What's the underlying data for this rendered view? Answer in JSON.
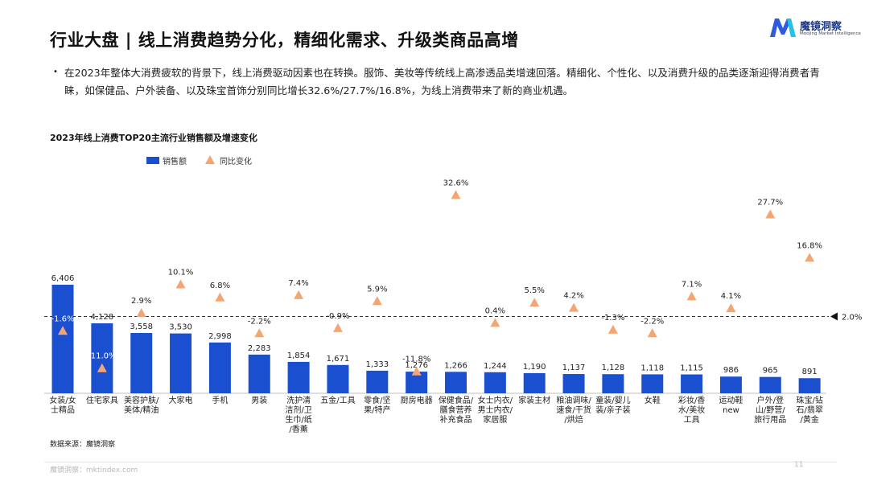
{
  "page": {
    "title": "行业大盘 | 线上消费趋势分化，精细化需求、升级类商品高增",
    "bullet": "在2023年整体大消费疲软的背景下，线上消费驱动因素也在转换。服饰、美妆等传统线上高渗透品类增速回落。精细化、个性化、以及消费升级的品类逐渐迎得消费者青睐，如保健品、户外装备、以及珠宝首饰分别同比增长32.6%/27.7%/16.8%，为线上消费带来了新的商业机遇。",
    "source": "数据来源：魔镜洞察",
    "footer_left": "魔镜洞察：mktindex.com",
    "page_number": "11"
  },
  "logo": {
    "name": "魔镜洞察",
    "sub": "Moojing Market Intelligence"
  },
  "colors": {
    "bar": "#1a4fcf",
    "triangle": "#f4a672",
    "line": "#333333"
  },
  "chart_data": {
    "type": "bar",
    "title": "2023年线上消费TOP20主流行业销售额及增速变化",
    "legend": {
      "bar": "销售额",
      "marker": "同比变化"
    },
    "categories": [
      [
        "女装/女",
        "士精品"
      ],
      [
        "住宅家具"
      ],
      [
        "美容护肤/",
        "美体/精油"
      ],
      [
        "大家电"
      ],
      [
        "手机"
      ],
      [
        "男装"
      ],
      [
        "洗护清",
        "洁剂/卫",
        "生巾/纸",
        "/香薰"
      ],
      [
        "五金/工具"
      ],
      [
        "零食/坚",
        "果/特产"
      ],
      [
        "厨房电器"
      ],
      [
        "保健食品/",
        "膳食营养",
        "补充食品"
      ],
      [
        "女士内衣/",
        "男士内衣/",
        "家居服"
      ],
      [
        "家装主材"
      ],
      [
        "粮油调味/",
        "速食/干货",
        "/烘焙"
      ],
      [
        "童装/婴儿",
        "装/亲子装"
      ],
      [
        "女鞋"
      ],
      [
        "彩妆/香",
        "水/美妆",
        "工具"
      ],
      [
        "运动鞋",
        "new"
      ],
      [
        "户外/登",
        "山/野营/",
        "旅行用品"
      ],
      [
        "珠宝/钻",
        "石/翡翠",
        "/黄金"
      ]
    ],
    "series": [
      {
        "name": "销售额",
        "values": [
          6406,
          4128,
          3558,
          3530,
          2998,
          2283,
          1854,
          1671,
          1333,
          1276,
          1266,
          1244,
          1190,
          1137,
          1128,
          1118,
          1115,
          986,
          965,
          891
        ]
      },
      {
        "name": "同比变化",
        "unit": "%",
        "values": [
          -1.6,
          -11.0,
          2.9,
          10.1,
          6.8,
          -2.2,
          7.4,
          -0.9,
          5.9,
          -11.8,
          32.6,
          0.4,
          5.5,
          4.2,
          -1.3,
          -2.2,
          7.1,
          4.1,
          27.7,
          16.8
        ]
      }
    ],
    "bar_labels": [
      "6,406",
      "4,128",
      "3,558",
      "3,530",
      "2,998",
      "2,283",
      "1,854",
      "1,671",
      "1,333",
      "1,276",
      "1,266",
      "1,244",
      "1,190",
      "1,137",
      "1,128",
      "1,118",
      "1,115",
      "986",
      "965",
      "891"
    ],
    "growth_labels": [
      "-1.6%",
      "-11.0%",
      "2.9%",
      "10.1%",
      "6.8%",
      "-2.2%",
      "7.4%",
      "-0.9%",
      "5.9%",
      "-11.8%",
      "32.6%",
      "0.4%",
      "5.5%",
      "4.2%",
      "-1.3%",
      "-2.2%",
      "7.1%",
      "4.1%",
      "27.7%",
      "16.8%"
    ],
    "reference_line": {
      "value": 2.0,
      "label": "2.0%"
    },
    "sales_range": [
      0,
      6500
    ],
    "growth_range": [
      -15,
      35
    ]
  }
}
